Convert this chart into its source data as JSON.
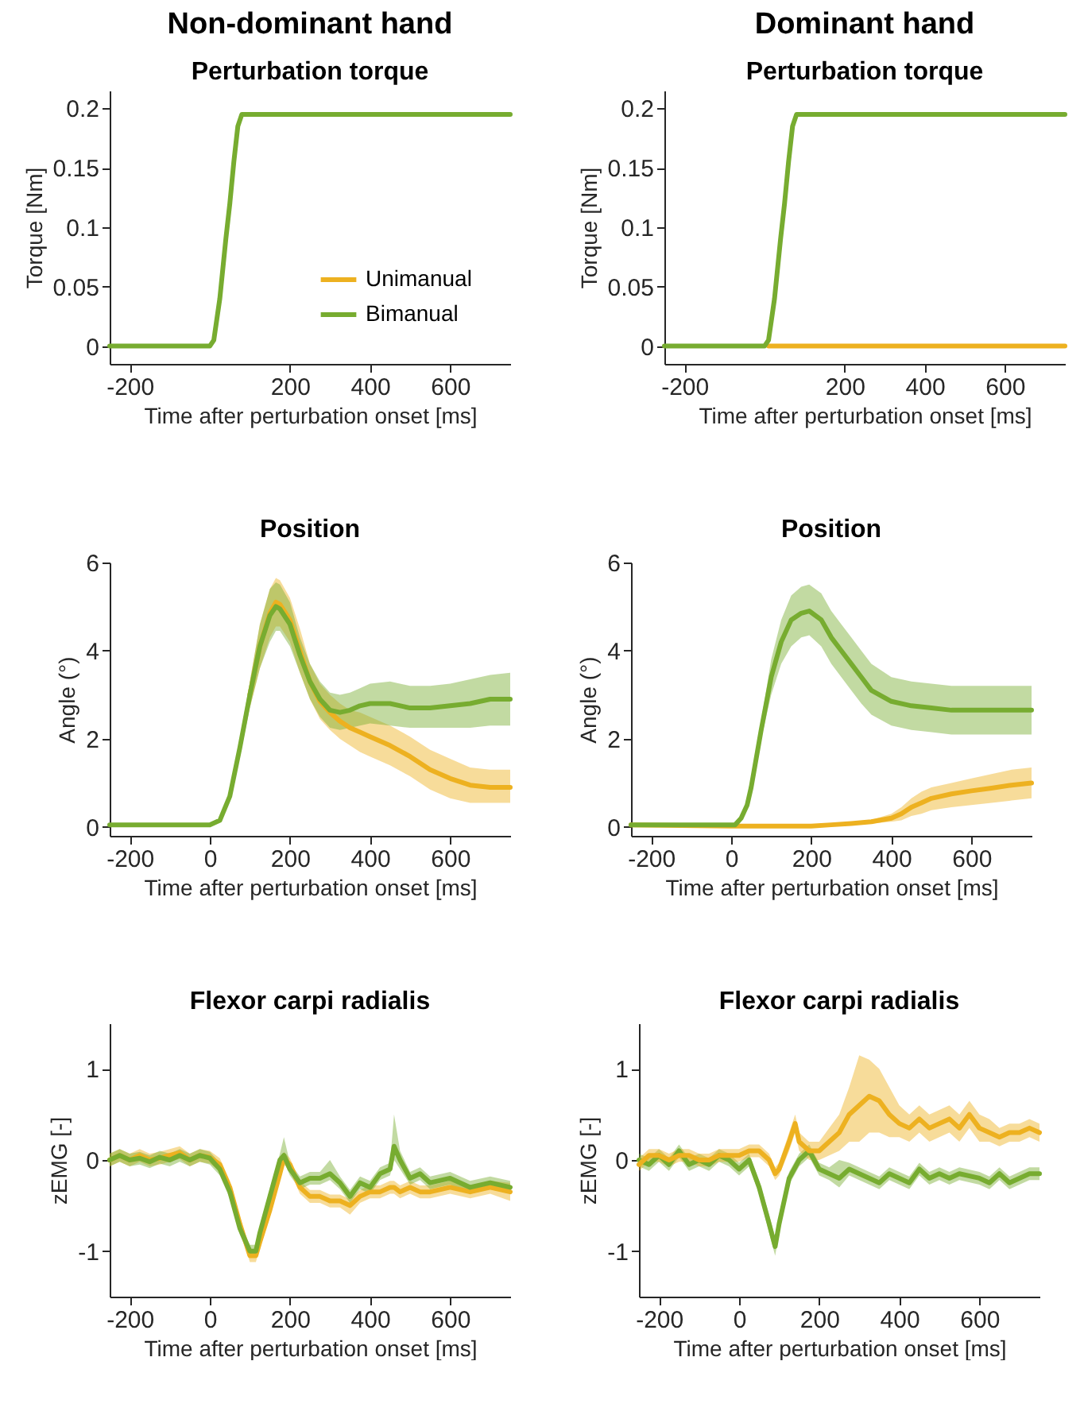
{
  "chart_data": [
    {
      "type": "line",
      "title": "Non-dominant hand",
      "subtitle": "Perturbation torque",
      "xlabel": "Time after perturbation onset [ms]",
      "ylabel": "Torque [Nm]",
      "xlim": [
        -250,
        750
      ],
      "xticks": [
        -200,
        200,
        400,
        600
      ],
      "ylim": [
        -0.015,
        0.215
      ],
      "yticks": [
        0,
        0.05,
        0.1,
        0.15,
        0.2
      ],
      "legend": "bottom right",
      "series": [
        {
          "name": "Unimanual",
          "color": "#edb120"
        },
        {
          "name": "Bimanual",
          "color": "#77ac30",
          "x": [
            -250,
            0,
            10,
            25,
            40,
            50,
            60,
            70,
            80,
            100,
            750
          ],
          "values": [
            0,
            0,
            0.005,
            0.04,
            0.09,
            0.12,
            0.155,
            0.185,
            0.195,
            0.195,
            0.195
          ]
        }
      ]
    },
    {
      "type": "line",
      "title": "Dominant hand",
      "subtitle": "Perturbation torque",
      "xlabel": "Time after perturbation onset [ms]",
      "ylabel": "Torque [Nm]",
      "xlim": [
        -250,
        750
      ],
      "xticks": [
        -200,
        200,
        400,
        600
      ],
      "ylim": [
        -0.015,
        0.215
      ],
      "yticks": [
        0,
        0.05,
        0.1,
        0.15,
        0.2
      ],
      "series": [
        {
          "color": "#edb120",
          "x": [
            10,
            750
          ],
          "values": [
            0,
            0
          ]
        },
        {
          "color": "#77ac30",
          "x": [
            -250,
            0,
            10,
            25,
            40,
            50,
            60,
            70,
            80,
            100,
            750
          ],
          "values": [
            0,
            0,
            0.005,
            0.04,
            0.09,
            0.12,
            0.155,
            0.185,
            0.195,
            0.195,
            0.195
          ]
        }
      ]
    },
    {
      "type": "line",
      "title": "Position",
      "xlabel": "Time after perturbation onset [ms]",
      "ylabel": "Angle (°)",
      "xlim": [
        -250,
        750
      ],
      "xticks": [
        -200,
        0,
        200,
        400,
        600
      ],
      "ylim": [
        -0.2,
        6
      ],
      "yticks": [
        0,
        2,
        4,
        6
      ],
      "series": [
        {
          "color": "#edb120",
          "x": [
            100,
            125,
            150,
            165,
            175,
            200,
            225,
            250,
            275,
            300,
            325,
            350,
            375,
            400,
            450,
            500,
            550,
            600,
            650,
            700,
            750
          ],
          "values": [
            3.0,
            4.1,
            4.85,
            5.1,
            5.05,
            4.7,
            4.0,
            3.3,
            2.85,
            2.6,
            2.4,
            2.25,
            2.15,
            2.05,
            1.85,
            1.6,
            1.3,
            1.1,
            0.95,
            0.9,
            0.9
          ],
          "lower": [
            2.7,
            3.6,
            4.3,
            4.55,
            4.55,
            4.2,
            3.5,
            2.9,
            2.45,
            2.2,
            2.0,
            1.85,
            1.7,
            1.6,
            1.4,
            1.15,
            0.85,
            0.65,
            0.55,
            0.55,
            0.55
          ],
          "upper": [
            3.3,
            4.6,
            5.4,
            5.65,
            5.6,
            5.2,
            4.5,
            3.7,
            3.25,
            3.0,
            2.8,
            2.65,
            2.6,
            2.5,
            2.3,
            2.05,
            1.75,
            1.55,
            1.35,
            1.3,
            1.3
          ]
        },
        {
          "color": "#77ac30",
          "x": [
            -250,
            0,
            25,
            50,
            75,
            100,
            125,
            150,
            165,
            175,
            200,
            225,
            250,
            275,
            300,
            325,
            350,
            375,
            400,
            450,
            500,
            550,
            600,
            650,
            700,
            750
          ],
          "values": [
            0.05,
            0.05,
            0.15,
            0.7,
            1.8,
            3.0,
            4.1,
            4.8,
            5.0,
            4.95,
            4.6,
            3.9,
            3.3,
            2.9,
            2.65,
            2.6,
            2.65,
            2.75,
            2.8,
            2.8,
            2.7,
            2.7,
            2.75,
            2.8,
            2.9,
            2.9
          ],
          "lower": [
            0.05,
            0.05,
            0.15,
            0.65,
            1.6,
            2.7,
            3.6,
            4.2,
            4.45,
            4.45,
            4.1,
            3.5,
            2.9,
            2.5,
            2.25,
            2.2,
            2.25,
            2.3,
            2.35,
            2.3,
            2.25,
            2.25,
            2.25,
            2.25,
            2.3,
            2.3
          ],
          "upper": [
            0.05,
            0.05,
            0.15,
            0.75,
            2.0,
            3.3,
            4.6,
            5.4,
            5.55,
            5.5,
            5.1,
            4.3,
            3.7,
            3.3,
            3.05,
            3.0,
            3.05,
            3.15,
            3.25,
            3.3,
            3.2,
            3.2,
            3.25,
            3.35,
            3.45,
            3.5
          ]
        }
      ]
    },
    {
      "type": "line",
      "title": "Position",
      "xlabel": "Time after perturbation onset [ms]",
      "ylabel": "Angle (°)",
      "xlim": [
        -250,
        750
      ],
      "xticks": [
        -200,
        0,
        200,
        400,
        600
      ],
      "ylim": [
        -0.2,
        6
      ],
      "yticks": [
        0,
        2,
        4,
        6
      ],
      "series": [
        {
          "color": "#edb120",
          "x": [
            -250,
            0,
            100,
            200,
            250,
            300,
            350,
            400,
            425,
            450,
            475,
            500,
            550,
            600,
            650,
            700,
            750
          ],
          "values": [
            0.05,
            0.02,
            0.02,
            0.02,
            0.05,
            0.08,
            0.12,
            0.2,
            0.3,
            0.45,
            0.55,
            0.65,
            0.75,
            0.82,
            0.88,
            0.95,
            1.0
          ],
          "lower": [
            0.05,
            0.02,
            0.02,
            0.02,
            0.04,
            0.06,
            0.08,
            0.12,
            0.15,
            0.25,
            0.3,
            0.38,
            0.45,
            0.5,
            0.55,
            0.6,
            0.65
          ],
          "upper": [
            0.05,
            0.02,
            0.02,
            0.02,
            0.06,
            0.1,
            0.16,
            0.3,
            0.45,
            0.65,
            0.8,
            0.9,
            1.0,
            1.1,
            1.2,
            1.3,
            1.35
          ]
        },
        {
          "color": "#77ac30",
          "x": [
            -250,
            0,
            10,
            25,
            40,
            50,
            75,
            100,
            125,
            150,
            175,
            195,
            225,
            250,
            275,
            300,
            325,
            350,
            400,
            450,
            500,
            550,
            600,
            650,
            700,
            750
          ],
          "values": [
            0.05,
            0.05,
            0.05,
            0.2,
            0.5,
            0.9,
            2.2,
            3.4,
            4.2,
            4.7,
            4.85,
            4.9,
            4.7,
            4.3,
            4.0,
            3.7,
            3.4,
            3.1,
            2.85,
            2.75,
            2.7,
            2.65,
            2.65,
            2.65,
            2.65,
            2.65
          ],
          "lower": [
            0.05,
            0.05,
            0.05,
            0.2,
            0.45,
            0.8,
            2.0,
            3.0,
            3.7,
            4.1,
            4.3,
            4.35,
            4.1,
            3.7,
            3.4,
            3.1,
            2.8,
            2.55,
            2.3,
            2.2,
            2.15,
            2.1,
            2.1,
            2.1,
            2.1,
            2.1
          ],
          "upper": [
            0.05,
            0.05,
            0.05,
            0.2,
            0.55,
            1.0,
            2.4,
            3.8,
            4.7,
            5.25,
            5.45,
            5.5,
            5.3,
            4.9,
            4.6,
            4.3,
            4.0,
            3.7,
            3.4,
            3.3,
            3.25,
            3.2,
            3.2,
            3.2,
            3.2,
            3.2
          ]
        }
      ]
    },
    {
      "type": "line",
      "title": "Flexor carpi radialis",
      "xlabel": "Time after perturbation onset [ms]",
      "ylabel": "zEMG [-]",
      "xlim": [
        -250,
        750
      ],
      "xticks": [
        -200,
        0,
        200,
        400,
        600
      ],
      "ylim": [
        -1.5,
        1.5
      ],
      "yticks": [
        -1,
        0,
        1
      ],
      "series": [
        {
          "color": "#edb120",
          "x": [
            -250,
            -225,
            -200,
            -175,
            -150,
            -125,
            -100,
            -75,
            -50,
            -25,
            0,
            25,
            50,
            75,
            100,
            115,
            125,
            150,
            175,
            185,
            200,
            225,
            250,
            275,
            300,
            325,
            350,
            375,
            400,
            425,
            450,
            460,
            475,
            500,
            525,
            550,
            600,
            650,
            700,
            750
          ],
          "values": [
            0,
            0.05,
            0,
            0.05,
            0,
            0.02,
            0.05,
            0.08,
            0,
            0.05,
            0.03,
            -0.05,
            -0.3,
            -0.7,
            -1.05,
            -1.05,
            -0.9,
            -0.55,
            -0.15,
            0.02,
            -0.05,
            -0.3,
            -0.4,
            -0.4,
            -0.45,
            -0.45,
            -0.5,
            -0.4,
            -0.35,
            -0.35,
            -0.3,
            -0.3,
            -0.35,
            -0.3,
            -0.35,
            -0.35,
            -0.3,
            -0.35,
            -0.3,
            -0.35
          ],
          "lower": [
            -0.07,
            -0.02,
            -0.07,
            -0.02,
            -0.07,
            -0.05,
            -0.02,
            0.01,
            -0.07,
            -0.02,
            -0.04,
            -0.12,
            -0.37,
            -0.77,
            -1.12,
            -1.12,
            -0.97,
            -0.62,
            -0.22,
            -0.05,
            -0.12,
            -0.37,
            -0.47,
            -0.47,
            -0.52,
            -0.52,
            -0.6,
            -0.47,
            -0.42,
            -0.42,
            -0.37,
            -0.37,
            -0.42,
            -0.37,
            -0.42,
            -0.42,
            -0.37,
            -0.42,
            -0.37,
            -0.45
          ],
          "upper": [
            0.07,
            0.12,
            0.07,
            0.12,
            0.07,
            0.09,
            0.12,
            0.15,
            0.07,
            0.12,
            0.1,
            0.02,
            -0.23,
            -0.63,
            -0.98,
            -0.98,
            -0.83,
            -0.48,
            -0.08,
            0.09,
            0.02,
            -0.23,
            -0.33,
            -0.33,
            -0.38,
            -0.38,
            -0.43,
            -0.33,
            -0.28,
            -0.28,
            -0.23,
            -0.23,
            -0.28,
            -0.23,
            -0.28,
            -0.28,
            -0.23,
            -0.28,
            -0.23,
            -0.25
          ]
        },
        {
          "color": "#77ac30",
          "x": [
            -250,
            -225,
            -200,
            -175,
            -150,
            -125,
            -100,
            -75,
            -50,
            -25,
            0,
            25,
            50,
            75,
            100,
            115,
            125,
            150,
            175,
            185,
            200,
            225,
            250,
            275,
            300,
            325,
            350,
            375,
            400,
            425,
            450,
            460,
            475,
            500,
            525,
            550,
            600,
            650,
            700,
            750
          ],
          "values": [
            0,
            0.05,
            0,
            0.02,
            -0.02,
            0.03,
            0,
            0.05,
            0,
            0.05,
            0.02,
            -0.1,
            -0.35,
            -0.75,
            -1.0,
            -1.0,
            -0.8,
            -0.4,
            0,
            0.05,
            -0.1,
            -0.25,
            -0.2,
            -0.2,
            -0.15,
            -0.25,
            -0.4,
            -0.25,
            -0.3,
            -0.15,
            -0.1,
            0.15,
            0,
            -0.2,
            -0.15,
            -0.25,
            -0.2,
            -0.3,
            -0.25,
            -0.3
          ],
          "lower": [
            -0.07,
            -0.02,
            -0.07,
            -0.05,
            -0.09,
            -0.04,
            -0.07,
            -0.02,
            -0.07,
            -0.02,
            -0.05,
            -0.17,
            -0.42,
            -0.82,
            -1.07,
            -1.07,
            -0.87,
            -0.47,
            -0.07,
            -0.02,
            -0.17,
            -0.32,
            -0.27,
            -0.27,
            -0.22,
            -0.32,
            -0.47,
            -0.32,
            -0.37,
            -0.22,
            -0.17,
            0.0,
            -0.1,
            -0.27,
            -0.22,
            -0.32,
            -0.27,
            -0.37,
            -0.32,
            -0.37
          ],
          "upper": [
            0.07,
            0.12,
            0.07,
            0.09,
            0.05,
            0.1,
            0.07,
            0.12,
            0.07,
            0.12,
            0.09,
            -0.03,
            -0.28,
            -0.68,
            -0.93,
            -0.93,
            -0.73,
            -0.33,
            0.07,
            0.25,
            -0.03,
            -0.18,
            -0.13,
            -0.13,
            0.0,
            -0.18,
            -0.33,
            -0.18,
            -0.23,
            -0.08,
            -0.03,
            0.5,
            0.1,
            -0.13,
            -0.08,
            -0.18,
            -0.13,
            -0.23,
            -0.18,
            -0.23
          ]
        }
      ]
    },
    {
      "type": "line",
      "title": "Flexor carpi radialis",
      "xlabel": "Time after perturbation onset [ms]",
      "ylabel": "zEMG [-]",
      "xlim": [
        -250,
        750
      ],
      "xticks": [
        -200,
        0,
        200,
        400,
        600
      ],
      "ylim": [
        -1.5,
        1.5
      ],
      "yticks": [
        -1,
        0,
        1
      ],
      "series": [
        {
          "color": "#77ac30",
          "x": [
            -250,
            -225,
            -200,
            -175,
            -150,
            -125,
            -100,
            -75,
            -50,
            -25,
            0,
            25,
            50,
            75,
            90,
            100,
            125,
            150,
            175,
            200,
            225,
            250,
            275,
            300,
            325,
            350,
            375,
            400,
            425,
            450,
            475,
            500,
            525,
            550,
            600,
            625,
            650,
            675,
            700,
            725,
            750
          ],
          "values": [
            0,
            -0.05,
            0.05,
            -0.05,
            0.1,
            -0.05,
            0,
            -0.05,
            0.05,
            0,
            -0.1,
            0,
            -0.3,
            -0.7,
            -0.95,
            -0.7,
            -0.2,
            0,
            0.1,
            -0.1,
            -0.15,
            -0.2,
            -0.1,
            -0.15,
            -0.2,
            -0.25,
            -0.15,
            -0.2,
            -0.25,
            -0.1,
            -0.2,
            -0.15,
            -0.2,
            -0.15,
            -0.2,
            -0.25,
            -0.15,
            -0.25,
            -0.2,
            -0.15,
            -0.15
          ],
          "lower": [
            -0.07,
            -0.12,
            -0.02,
            -0.12,
            0.03,
            -0.12,
            -0.07,
            -0.12,
            -0.02,
            -0.07,
            -0.17,
            -0.07,
            -0.37,
            -0.8,
            -1.05,
            -0.8,
            -0.27,
            -0.07,
            0.03,
            -0.17,
            -0.22,
            -0.3,
            -0.17,
            -0.22,
            -0.27,
            -0.32,
            -0.22,
            -0.27,
            -0.32,
            -0.17,
            -0.27,
            -0.22,
            -0.27,
            -0.22,
            -0.27,
            -0.32,
            -0.22,
            -0.32,
            -0.27,
            -0.22,
            -0.22
          ],
          "upper": [
            0.07,
            0.02,
            0.12,
            0.02,
            0.17,
            0.02,
            0.07,
            0.02,
            0.12,
            0.07,
            -0.03,
            0.07,
            -0.23,
            -0.6,
            -0.85,
            -0.6,
            -0.13,
            0.07,
            0.17,
            -0.03,
            -0.08,
            0.0,
            -0.03,
            -0.08,
            -0.13,
            -0.18,
            -0.08,
            -0.13,
            -0.18,
            -0.03,
            -0.13,
            -0.08,
            -0.13,
            -0.08,
            -0.13,
            -0.18,
            -0.08,
            -0.18,
            -0.13,
            -0.08,
            -0.08
          ]
        },
        {
          "color": "#edb120",
          "x": [
            -250,
            -225,
            -200,
            -175,
            -150,
            -125,
            -100,
            -75,
            -50,
            -25,
            0,
            25,
            50,
            75,
            90,
            100,
            125,
            140,
            150,
            175,
            200,
            225,
            250,
            275,
            300,
            325,
            350,
            375,
            400,
            425,
            450,
            475,
            500,
            525,
            550,
            575,
            600,
            625,
            650,
            675,
            700,
            725,
            750
          ],
          "values": [
            -0.05,
            0.05,
            0.05,
            0,
            0.05,
            0.05,
            0,
            0,
            0.05,
            0.05,
            0.05,
            0.1,
            0.1,
            0,
            -0.15,
            -0.1,
            0.2,
            0.4,
            0.2,
            0.1,
            0.1,
            0.2,
            0.3,
            0.5,
            0.6,
            0.7,
            0.65,
            0.5,
            0.4,
            0.35,
            0.45,
            0.35,
            0.4,
            0.45,
            0.35,
            0.5,
            0.35,
            0.3,
            0.25,
            0.3,
            0.3,
            0.35,
            0.3
          ],
          "lower": [
            -0.12,
            -0.02,
            -0.02,
            -0.07,
            -0.02,
            -0.02,
            -0.07,
            -0.07,
            -0.02,
            -0.02,
            -0.02,
            0.03,
            0.03,
            -0.07,
            -0.22,
            -0.17,
            0.1,
            0.3,
            0.1,
            0.0,
            0.0,
            0.05,
            0.1,
            0.2,
            0.2,
            0.3,
            0.3,
            0.25,
            0.25,
            0.2,
            0.3,
            0.2,
            0.25,
            0.3,
            0.2,
            0.35,
            0.2,
            0.2,
            0.15,
            0.2,
            0.2,
            0.25,
            0.2
          ],
          "upper": [
            0.02,
            0.12,
            0.12,
            0.07,
            0.12,
            0.12,
            0.07,
            0.07,
            0.12,
            0.12,
            0.12,
            0.17,
            0.17,
            0.07,
            -0.08,
            -0.03,
            0.3,
            0.5,
            0.3,
            0.2,
            0.2,
            0.35,
            0.5,
            0.8,
            1.15,
            1.1,
            1.0,
            0.8,
            0.6,
            0.5,
            0.6,
            0.5,
            0.55,
            0.6,
            0.5,
            0.65,
            0.5,
            0.45,
            0.35,
            0.4,
            0.4,
            0.45,
            0.4
          ]
        }
      ]
    }
  ]
}
